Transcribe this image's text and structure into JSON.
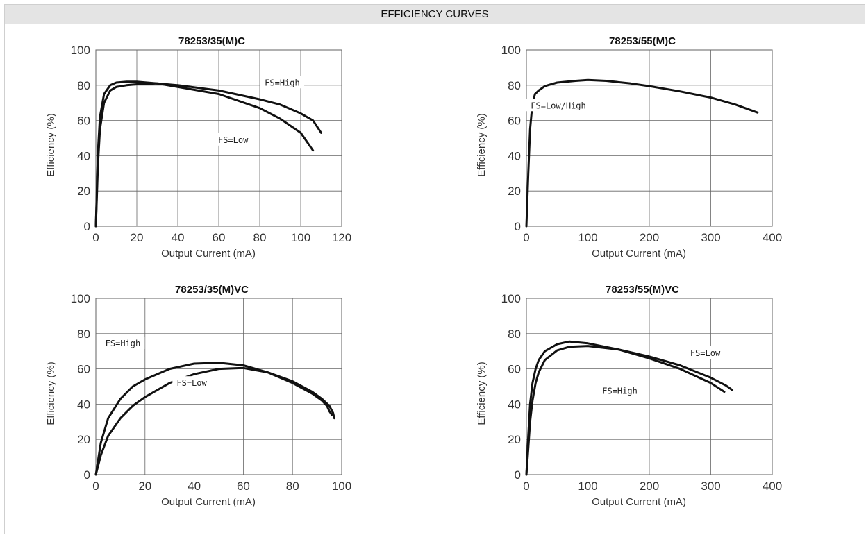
{
  "header": {
    "title": "EFFICIENCY CURVES"
  },
  "chart_data": [
    {
      "type": "line",
      "title": "78253/35(M)C",
      "xlabel": "Output Current (mA)",
      "ylabel": "Efficiency (%)",
      "xlim": [
        0,
        120
      ],
      "ylim": [
        0,
        100
      ],
      "xticks": [
        0,
        20,
        40,
        60,
        80,
        100,
        120
      ],
      "yticks": [
        0,
        20,
        40,
        60,
        80,
        100
      ],
      "grid": true,
      "series": [
        {
          "name": "FS=High",
          "x": [
            0,
            1,
            2,
            4,
            7,
            10,
            15,
            20,
            30,
            40,
            60,
            80,
            90,
            100,
            106,
            110
          ],
          "y": [
            0,
            35,
            55,
            70,
            77,
            79,
            80,
            80.5,
            81,
            80,
            77,
            72,
            69,
            64,
            60,
            53
          ]
        },
        {
          "name": "FS=Low",
          "x": [
            0,
            1,
            2,
            4,
            7,
            10,
            15,
            20,
            30,
            40,
            60,
            80,
            90,
            100,
            106
          ],
          "y": [
            0,
            42,
            62,
            75,
            80,
            81.5,
            82,
            82,
            81,
            79,
            75,
            67,
            61,
            53,
            43
          ]
        }
      ],
      "annotations": [
        {
          "text": "FS=High",
          "x": 91,
          "y": 81
        },
        {
          "text": "FS=Low",
          "x": 67,
          "y": 48.5
        }
      ]
    },
    {
      "type": "line",
      "title": "78253/55(M)C",
      "xlabel": "Output Current (mA)",
      "ylabel": "Efficiency (%)",
      "xlim": [
        0,
        400
      ],
      "ylim": [
        0,
        100
      ],
      "xticks": [
        0,
        100,
        200,
        300,
        400
      ],
      "yticks": [
        0,
        20,
        40,
        60,
        80,
        100
      ],
      "grid": true,
      "series": [
        {
          "name": "FS=Low/High",
          "x": [
            0,
            3,
            6,
            10,
            14,
            20,
            30,
            50,
            80,
            100,
            130,
            170,
            200,
            250,
            300,
            340,
            376
          ],
          "y": [
            0,
            30,
            55,
            70,
            75,
            77,
            79.5,
            81.5,
            82.5,
            83,
            82.5,
            81,
            79.5,
            76.5,
            73,
            69,
            64.5
          ]
        }
      ],
      "annotations": [
        {
          "text": "FS=Low/High",
          "x": 52,
          "y": 68
        }
      ]
    },
    {
      "type": "line",
      "title": "78253/35(M)VC",
      "xlabel": "Output Current (mA)",
      "ylabel": "Efficiency (%)",
      "xlim": [
        0,
        100
      ],
      "ylim": [
        0,
        100
      ],
      "xticks": [
        0,
        20,
        40,
        60,
        80,
        100
      ],
      "yticks": [
        0,
        20,
        40,
        60,
        80,
        100
      ],
      "grid": true,
      "series": [
        {
          "name": "FS=High",
          "x": [
            0,
            2,
            5,
            10,
            15,
            20,
            30,
            40,
            50,
            60,
            70,
            80,
            88,
            92,
            94,
            95,
            96
          ],
          "y": [
            0,
            18,
            32,
            43,
            50,
            54,
            60,
            63,
            63.5,
            62,
            58,
            52,
            46,
            42,
            39,
            36,
            34
          ]
        },
        {
          "name": "FS=Low",
          "x": [
            0,
            2,
            5,
            10,
            15,
            20,
            30,
            40,
            50,
            60,
            70,
            80,
            88,
            92,
            95,
            96.5,
            97
          ],
          "y": [
            0,
            11,
            22,
            32,
            39,
            44,
            52,
            57,
            60,
            60.5,
            58,
            53,
            47,
            43,
            39,
            35,
            32
          ]
        }
      ],
      "annotations": [
        {
          "text": "FS=High",
          "x": 11,
          "y": 74
        },
        {
          "text": "FS=Low",
          "x": 39,
          "y": 51.5
        }
      ]
    },
    {
      "type": "line",
      "title": "78253/55(M)VC",
      "xlabel": "Output Current (mA)",
      "ylabel": "Efficiency (%)",
      "xlim": [
        0,
        400
      ],
      "ylim": [
        0,
        100
      ],
      "xticks": [
        0,
        100,
        200,
        300,
        400
      ],
      "yticks": [
        0,
        20,
        40,
        60,
        80,
        100
      ],
      "grid": true,
      "series": [
        {
          "name": "FS=Low",
          "x": [
            0,
            3,
            6,
            10,
            15,
            20,
            30,
            50,
            70,
            100,
            150,
            200,
            250,
            300,
            325,
            335
          ],
          "y": [
            0,
            15,
            30,
            42,
            52,
            58,
            65,
            70.5,
            72.5,
            73,
            71,
            67,
            62,
            55,
            50.5,
            48
          ]
        },
        {
          "name": "FS=High",
          "x": [
            0,
            3,
            6,
            10,
            15,
            20,
            30,
            50,
            70,
            100,
            150,
            200,
            250,
            300,
            322
          ],
          "y": [
            0,
            22,
            40,
            52,
            60,
            65,
            70,
            74,
            75.5,
            74.5,
            71,
            66,
            60,
            52,
            47
          ]
        }
      ],
      "annotations": [
        {
          "text": "FS=Low",
          "x": 291,
          "y": 68.5
        },
        {
          "text": "FS=High",
          "x": 152,
          "y": 47
        }
      ]
    }
  ]
}
